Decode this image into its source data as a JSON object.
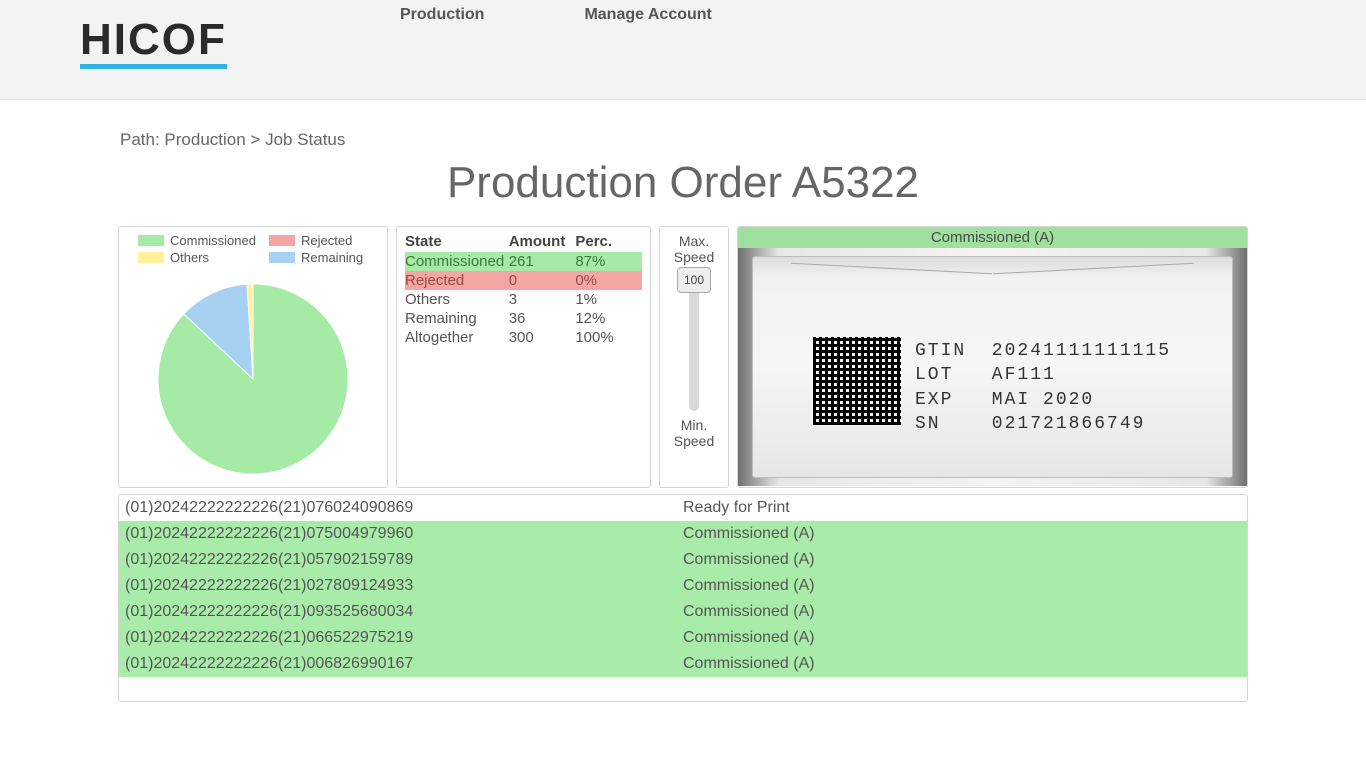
{
  "brand": "HICOF",
  "nav": {
    "production": "Production",
    "account": "Manage Account"
  },
  "breadcrumb": "Path: Production > Job Status",
  "title": "Production Order A5322",
  "legend": {
    "commissioned": "Commissioned",
    "rejected": "Rejected",
    "others": "Others",
    "remaining": "Remaining"
  },
  "colors": {
    "commissioned": "#a5eaa5",
    "rejected": "#f3a6a3",
    "others": "#fff09a",
    "remaining": "#a6d1f3",
    "page_bg": "#ffffff",
    "panel_border": "#d5d5d5"
  },
  "pie": {
    "type": "pie",
    "slices": [
      {
        "label": "Commissioned",
        "value": 87,
        "color": "#a5eaa5"
      },
      {
        "label": "Remaining",
        "value": 12,
        "color": "#a6d1f3"
      },
      {
        "label": "Others",
        "value": 1,
        "color": "#fff09a"
      },
      {
        "label": "Rejected",
        "value": 0,
        "color": "#f3a6a3"
      }
    ],
    "radius": 95,
    "start_angle_deg": -90
  },
  "state_table": {
    "headers": {
      "state": "State",
      "amount": "Amount",
      "perc": "Perc."
    },
    "rows": [
      {
        "state": "Commissioned",
        "amount": "261",
        "perc": "87%",
        "cls": "row-comm"
      },
      {
        "state": "Rejected",
        "amount": "0",
        "perc": "0%",
        "cls": "row-rej"
      },
      {
        "state": "Others",
        "amount": "3",
        "perc": "1%",
        "cls": ""
      },
      {
        "state": "Remaining",
        "amount": "36",
        "perc": "12%",
        "cls": ""
      },
      {
        "state": "Altogether",
        "amount": "300",
        "perc": "100%",
        "cls": ""
      }
    ]
  },
  "speed": {
    "max": "Max. Speed",
    "min": "Min. Speed",
    "value": "100"
  },
  "preview": {
    "banner": "Commissioned (A)",
    "lines": "GTIN  20241111111115\nLOT   AF111\nEXP   MAI 2020\nSN    021721866749"
  },
  "serials": [
    {
      "code": "(01)20242222222226(21)076024090869",
      "status": "Ready for Print",
      "cls": "ready"
    },
    {
      "code": "(01)20242222222226(21)075004979960",
      "status": "Commissioned (A)",
      "cls": "comm"
    },
    {
      "code": "(01)20242222222226(21)057902159789",
      "status": "Commissioned (A)",
      "cls": "comm"
    },
    {
      "code": "(01)20242222222226(21)027809124933",
      "status": "Commissioned (A)",
      "cls": "comm"
    },
    {
      "code": "(01)20242222222226(21)093525680034",
      "status": "Commissioned (A)",
      "cls": "comm"
    },
    {
      "code": "(01)20242222222226(21)066522975219",
      "status": "Commissioned (A)",
      "cls": "comm"
    },
    {
      "code": "(01)20242222222226(21)006826990167",
      "status": "Commissioned (A)",
      "cls": "comm"
    }
  ]
}
